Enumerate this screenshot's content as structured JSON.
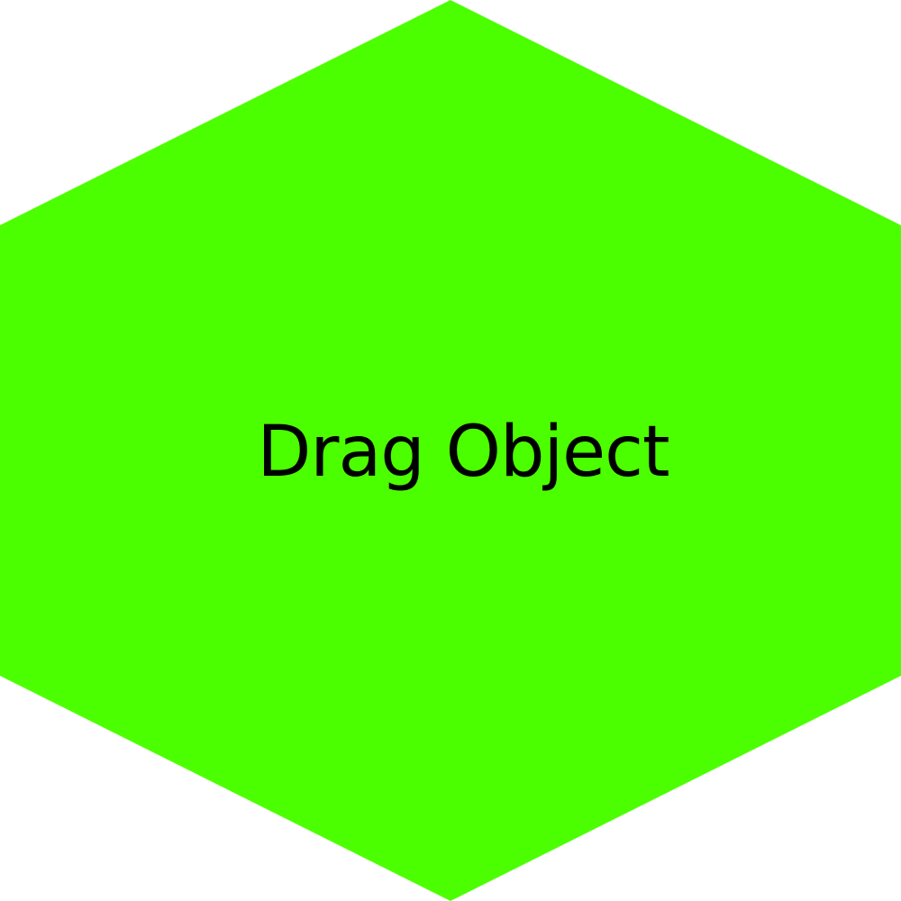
{
  "drag_object": {
    "label": "Drag Object",
    "shape": "hexagon",
    "fill_color": "#4cff00",
    "text_color": "#000000"
  },
  "background_color": "#ffffff"
}
